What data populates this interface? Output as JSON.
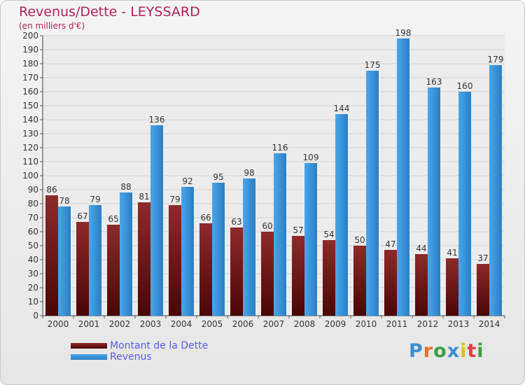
{
  "title": "Revenus/Dette - LEYSSARD",
  "subtitle": "(en milliers d'€)",
  "logo": {
    "text": "Proxiti",
    "colors": [
      "#3a8fd0",
      "#e8702a",
      "#3aa040",
      "#3a8fd0",
      "#d8c020",
      "#e04040",
      "#3aa040"
    ]
  },
  "colors": {
    "debt": "#7a1c1c",
    "revenue": "#3a96dc",
    "title": "#b0225a",
    "legend_text": "#5a5ae0"
  },
  "chart_data": {
    "type": "bar",
    "categories": [
      "2000",
      "2001",
      "2002",
      "2003",
      "2004",
      "2005",
      "2006",
      "2007",
      "2008",
      "2009",
      "2010",
      "2011",
      "2012",
      "2013",
      "2014"
    ],
    "series": [
      {
        "name": "Montant de la Dette",
        "values": [
          86,
          67,
          65,
          81,
          79,
          66,
          63,
          60,
          57,
          54,
          50,
          47,
          44,
          41,
          37
        ]
      },
      {
        "name": "Revenus",
        "values": [
          78,
          79,
          88,
          136,
          92,
          95,
          98,
          116,
          109,
          144,
          175,
          198,
          163,
          160,
          179
        ]
      }
    ],
    "ylim": [
      0,
      200
    ],
    "ytick_step": 10,
    "grid": true,
    "legend_position": "bottom-left"
  }
}
